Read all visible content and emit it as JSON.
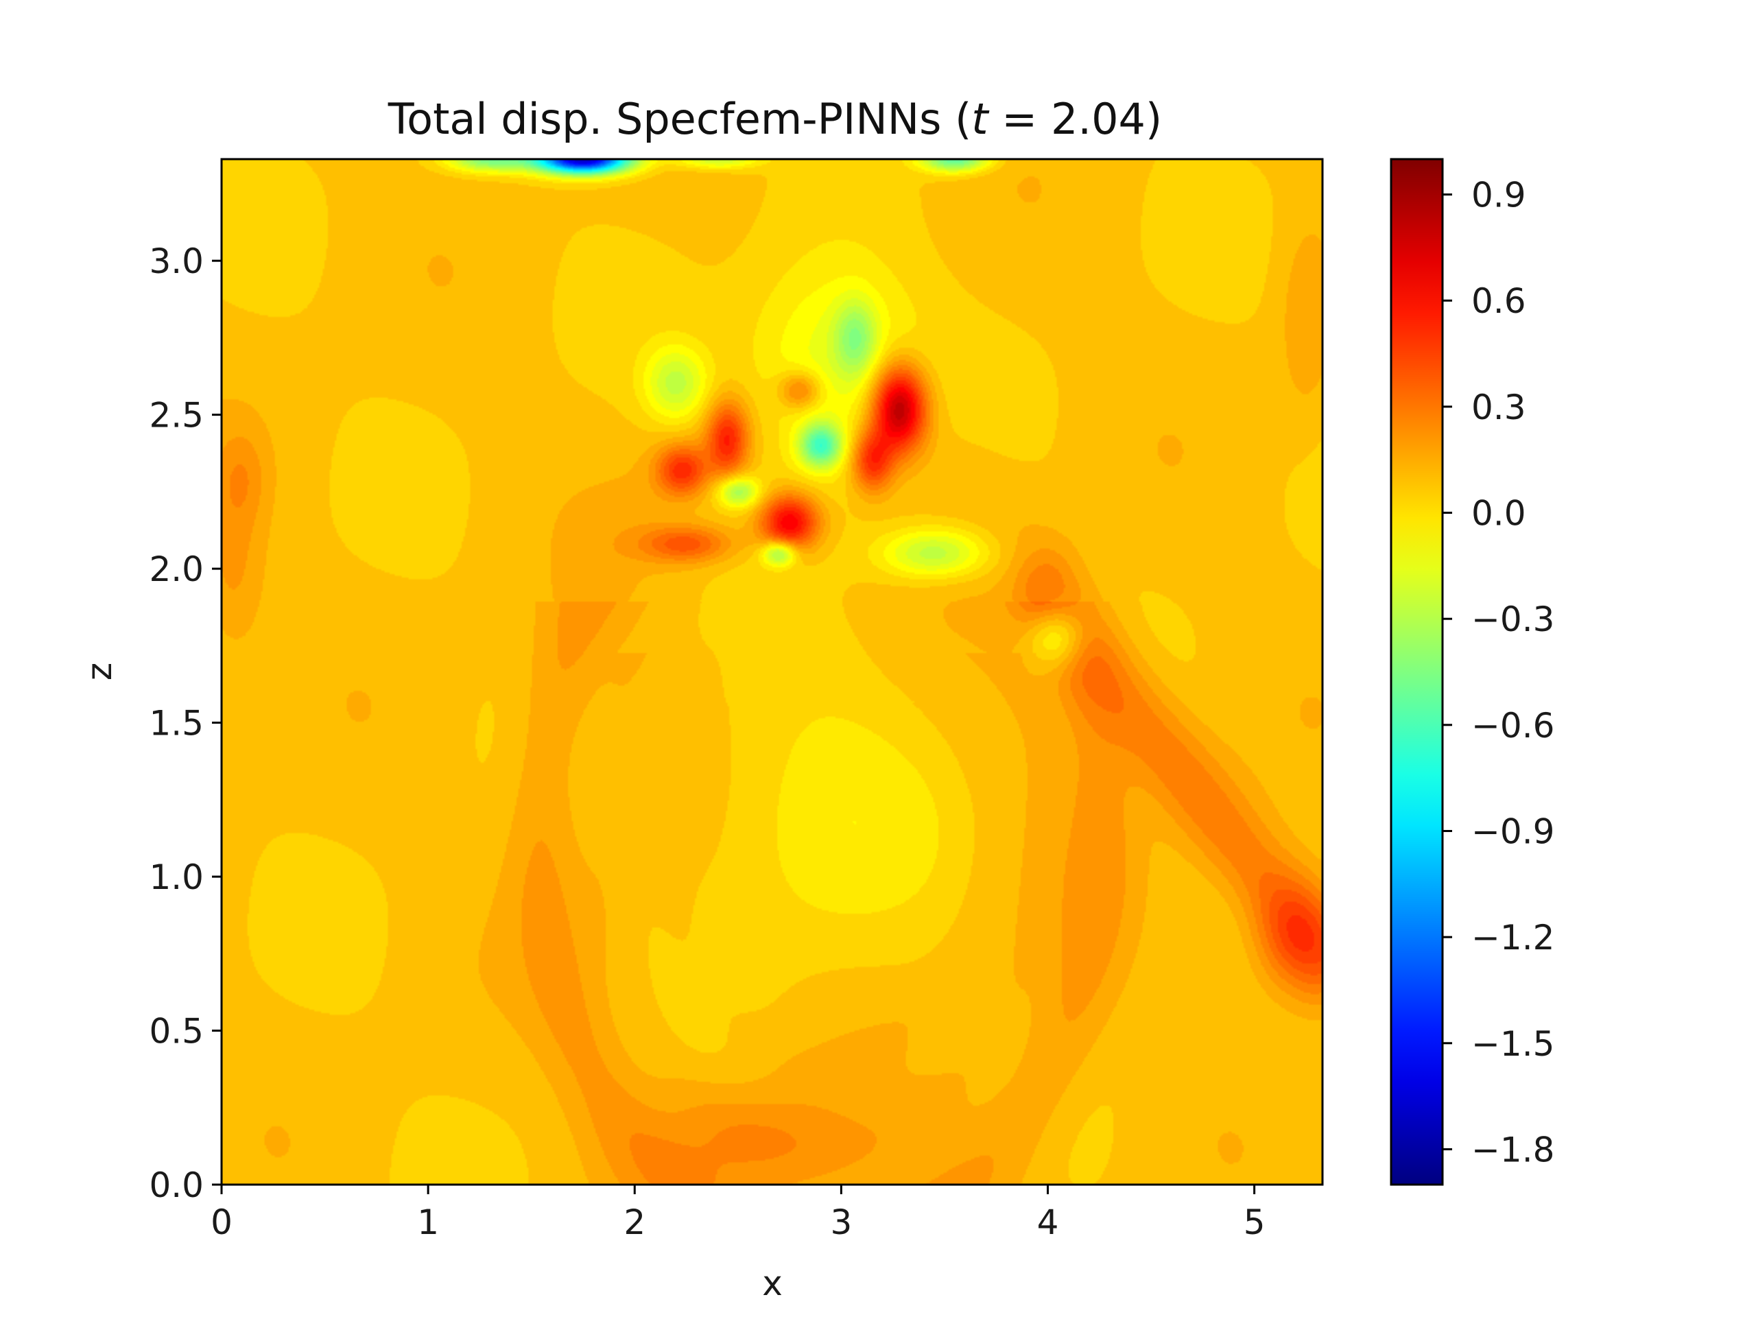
{
  "chart_data": {
    "type": "heatmap",
    "title_prefix": "Total disp. Specfem-PINNs (",
    "title_var": "t",
    "title_suffix": " = 2.04)",
    "xlabel": "x",
    "ylabel": "z",
    "xlim": [
      0,
      5.33
    ],
    "ylim": [
      0,
      3.33
    ],
    "x_ticks": [
      "0",
      "1",
      "2",
      "3",
      "4",
      "5"
    ],
    "y_ticks": [
      "0.0",
      "0.5",
      "1.0",
      "1.5",
      "2.0",
      "2.5",
      "3.0"
    ],
    "colorbar": {
      "colormap": "jet",
      "range": [
        -1.9,
        1.0
      ],
      "ticks": [
        "0.9",
        "0.6",
        "0.3",
        "0.0",
        "−0.3",
        "−0.6",
        "−0.9",
        "−1.2",
        "−1.5",
        "−1.8"
      ]
    },
    "background_value": 0.08,
    "features": [
      {
        "kind": "ring",
        "cx": 2.9,
        "cz": 1.15,
        "r": 1.35,
        "width": 0.18,
        "value": 0.2
      },
      {
        "kind": "ring",
        "cx": 2.9,
        "cz": 1.15,
        "r": 1.05,
        "width": 0.12,
        "value": 0.12
      },
      {
        "kind": "ring",
        "cx": 2.9,
        "cz": 1.15,
        "r": 0.75,
        "width": 0.1,
        "value": 0.1
      },
      {
        "kind": "blob",
        "cx": 2.9,
        "cz": 1.2,
        "sx": 0.55,
        "sz": 0.45,
        "value": -0.04
      },
      {
        "kind": "band",
        "x0": 4.0,
        "z0": 1.9,
        "x1": 5.33,
        "z1": 0.75,
        "width": 0.16,
        "value": 0.3
      },
      {
        "kind": "blob",
        "cx": 5.2,
        "cz": 0.8,
        "sx": 0.2,
        "sz": 0.18,
        "value": 0.35
      },
      {
        "kind": "blob",
        "cx": 0.05,
        "cz": 2.0,
        "sx": 0.15,
        "sz": 0.3,
        "value": 0.2
      },
      {
        "kind": "blob",
        "cx": 0.1,
        "cz": 2.3,
        "sx": 0.12,
        "sz": 0.15,
        "value": 0.18
      },
      {
        "kind": "blob",
        "cx": 2.6,
        "cz": 0.15,
        "sx": 0.5,
        "sz": 0.18,
        "value": 0.22
      },
      {
        "kind": "blob",
        "cx": 5.25,
        "cz": 2.8,
        "sx": 0.12,
        "sz": 0.3,
        "value": 0.18
      },
      {
        "kind": "blob",
        "cx": 2.95,
        "cz": 2.65,
        "sx": 0.4,
        "sz": 0.35,
        "value": -0.2
      },
      {
        "kind": "blob",
        "cx": 2.45,
        "cz": 2.42,
        "sx": 0.1,
        "sz": 0.12,
        "value": 0.55
      },
      {
        "kind": "blob",
        "cx": 2.23,
        "cz": 2.32,
        "sx": 0.12,
        "sz": 0.08,
        "value": 0.5
      },
      {
        "kind": "blob",
        "cx": 2.75,
        "cz": 2.15,
        "sx": 0.14,
        "sz": 0.09,
        "value": 0.7
      },
      {
        "kind": "blob",
        "cx": 3.28,
        "cz": 2.52,
        "sx": 0.13,
        "sz": 0.14,
        "value": 0.9
      },
      {
        "kind": "blob",
        "cx": 3.15,
        "cz": 2.35,
        "sx": 0.1,
        "sz": 0.1,
        "value": 0.55
      },
      {
        "kind": "blob",
        "cx": 2.8,
        "cz": 2.58,
        "sx": 0.1,
        "sz": 0.06,
        "value": 0.4
      },
      {
        "kind": "blob",
        "cx": 2.25,
        "cz": 2.08,
        "sx": 0.22,
        "sz": 0.06,
        "value": 0.4
      },
      {
        "kind": "blob",
        "cx": 2.9,
        "cz": 2.4,
        "sx": 0.1,
        "sz": 0.07,
        "value": -0.55
      },
      {
        "kind": "blob",
        "cx": 2.5,
        "cz": 2.25,
        "sx": 0.1,
        "sz": 0.05,
        "value": -0.35
      },
      {
        "kind": "blob",
        "cx": 3.45,
        "cz": 2.05,
        "sx": 0.25,
        "sz": 0.08,
        "value": -0.3
      },
      {
        "kind": "blob",
        "cx": 2.7,
        "cz": 2.05,
        "sx": 0.08,
        "sz": 0.04,
        "value": -0.4
      },
      {
        "kind": "blob",
        "cx": 3.07,
        "cz": 2.75,
        "sx": 0.1,
        "sz": 0.12,
        "value": -0.25
      },
      {
        "kind": "blob",
        "cx": 2.2,
        "cz": 2.6,
        "sx": 0.15,
        "sz": 0.12,
        "value": -0.25
      },
      {
        "kind": "blob",
        "cx": 4.05,
        "cz": 1.78,
        "sx": 0.14,
        "sz": 0.1,
        "value": -0.3
      },
      {
        "kind": "blob",
        "cx": 1.75,
        "cz": 3.33,
        "sx": 0.22,
        "sz": 0.045,
        "value": -1.75
      },
      {
        "kind": "blob",
        "cx": 1.3,
        "cz": 3.33,
        "sx": 0.2,
        "sz": 0.04,
        "value": -0.45
      },
      {
        "kind": "blob",
        "cx": 3.55,
        "cz": 3.33,
        "sx": 0.16,
        "sz": 0.04,
        "value": -0.55
      },
      {
        "kind": "blob",
        "cx": 2.4,
        "cz": 3.33,
        "sx": 0.2,
        "sz": 0.03,
        "value": -0.25
      }
    ]
  }
}
